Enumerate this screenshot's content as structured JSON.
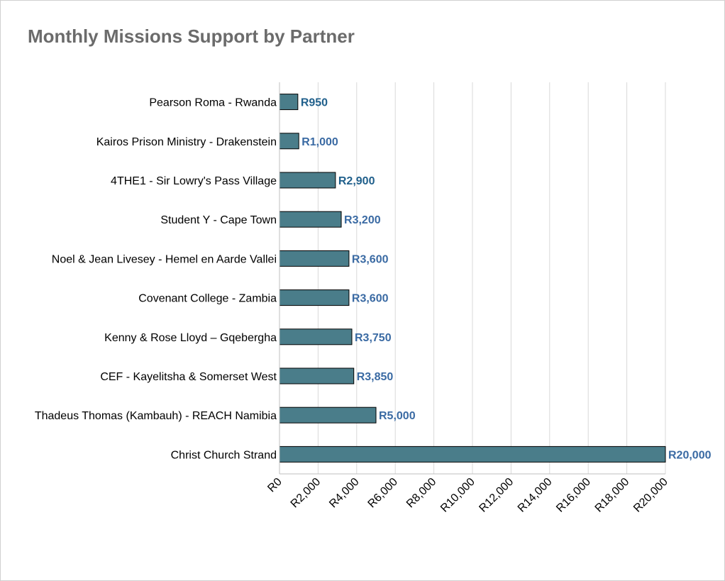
{
  "chart_data": {
    "type": "bar",
    "orientation": "horizontal",
    "title": "Monthly Missions Support by Partner",
    "xlabel": "",
    "ylabel": "",
    "xlim": [
      0,
      20000
    ],
    "grid": true,
    "legend": "none",
    "categories": [
      "Pearson Roma - Rwanda",
      "Kairos Prison Ministry - Drakenstein",
      "4THE1 - Sir Lowry's Pass Village",
      "Student Y - Cape Town",
      "Noel & Jean Livesey - Hemel en Aarde Vallei",
      "Covenant College - Zambia",
      "Kenny & Rose Lloyd – Gqebergha",
      "CEF - Kayelitsha & Somerset West",
      "Thadeus Thomas (Kambauh) -  REACH Namibia",
      "Christ Church Strand"
    ],
    "values": [
      950,
      1000,
      2900,
      3200,
      3600,
      3600,
      3750,
      3850,
      5000,
      20000
    ],
    "data_labels": [
      "R950",
      "R1,000",
      "R2,900",
      "R3,200",
      "R3,600",
      "R3,600",
      "R3,750",
      "R3,850",
      "R5,000",
      "R20,000"
    ],
    "ticks": [
      0,
      2000,
      4000,
      6000,
      8000,
      10000,
      12000,
      14000,
      16000,
      18000,
      20000
    ],
    "tick_labels": [
      "R0",
      "R2,000",
      "R4,000",
      "R6,000",
      "R8,000",
      "R10,000",
      "R12,000",
      "R14,000",
      "R16,000",
      "R18,000",
      "R20,000"
    ],
    "colors": {
      "bar": "#4a7d8a",
      "bar_border": "#000000",
      "data_label": "#3a6aa3",
      "data_label_alt": "#1f5f8b",
      "grid": "#d9d9d9",
      "title": "#6b6b6b"
    }
  }
}
